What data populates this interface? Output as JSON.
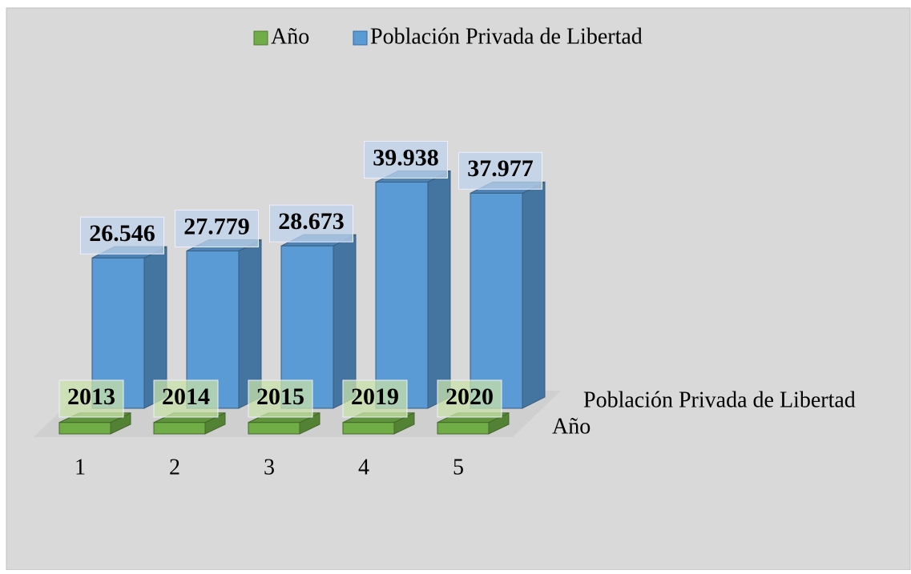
{
  "chart_data": {
    "type": "bar3d",
    "categories": [
      "1",
      "2",
      "3",
      "4",
      "5"
    ],
    "series": [
      {
        "name": "Año",
        "color": "#70ad47",
        "values": [
          2013,
          2014,
          2015,
          2019,
          2020
        ]
      },
      {
        "name": "Población Privada de Libertad",
        "color": "#5b9bd5",
        "values": [
          26546,
          27779,
          28673,
          39938,
          37977
        ],
        "value_labels": [
          "26.546",
          "27.779",
          "28.673",
          "39.938",
          "37.977"
        ]
      }
    ],
    "ylim": [
      0,
      40000
    ],
    "legend": "top"
  }
}
